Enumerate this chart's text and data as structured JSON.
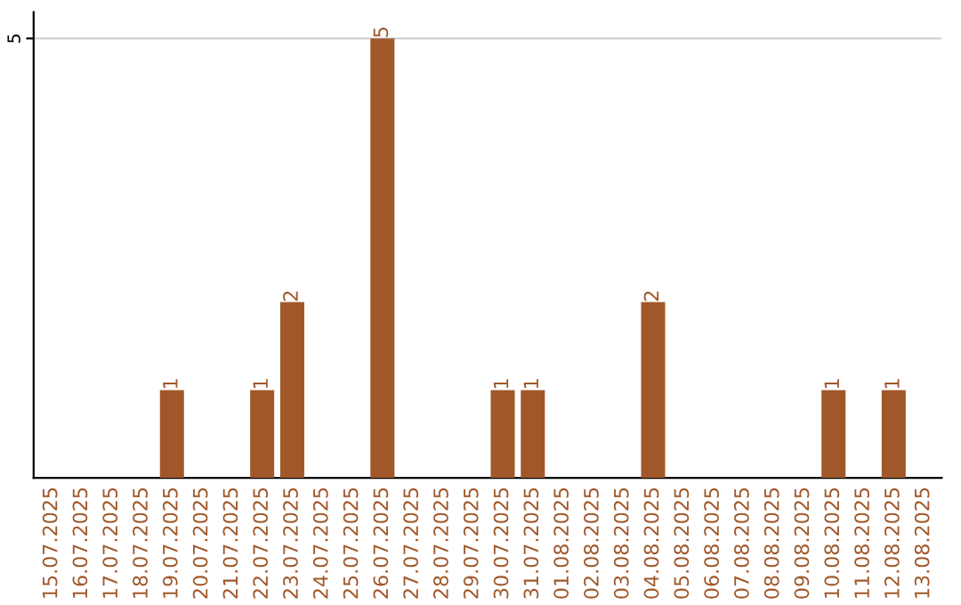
{
  "chart_data": {
    "type": "bar",
    "categories": [
      "15.07.2025",
      "16.07.2025",
      "17.07.2025",
      "18.07.2025",
      "19.07.2025",
      "20.07.2025",
      "21.07.2025",
      "22.07.2025",
      "23.07.2025",
      "24.07.2025",
      "25.07.2025",
      "26.07.2025",
      "27.07.2025",
      "28.07.2025",
      "29.07.2025",
      "30.07.2025",
      "31.07.2025",
      "01.08.2025",
      "02.08.2025",
      "03.08.2025",
      "04.08.2025",
      "05.08.2025",
      "06.08.2025",
      "07.08.2025",
      "08.08.2025",
      "09.08.2025",
      "10.08.2025",
      "11.08.2025",
      "12.08.2025",
      "13.08.2025"
    ],
    "values": [
      0,
      0,
      0,
      0,
      1,
      0,
      0,
      1,
      2,
      0,
      0,
      5,
      0,
      0,
      0,
      1,
      1,
      0,
      0,
      0,
      2,
      0,
      0,
      0,
      0,
      0,
      1,
      0,
      1,
      0
    ],
    "value_labels": [
      null,
      null,
      null,
      null,
      "1",
      null,
      null,
      "1",
      "2",
      null,
      null,
      "5",
      null,
      null,
      null,
      "1",
      "1",
      null,
      null,
      null,
      "2",
      null,
      null,
      null,
      null,
      null,
      "1",
      null,
      "1",
      null
    ],
    "color": "#a0582a",
    "ylim": [
      0,
      5.3
    ],
    "yticks": [
      5
    ],
    "grid": "y"
  }
}
